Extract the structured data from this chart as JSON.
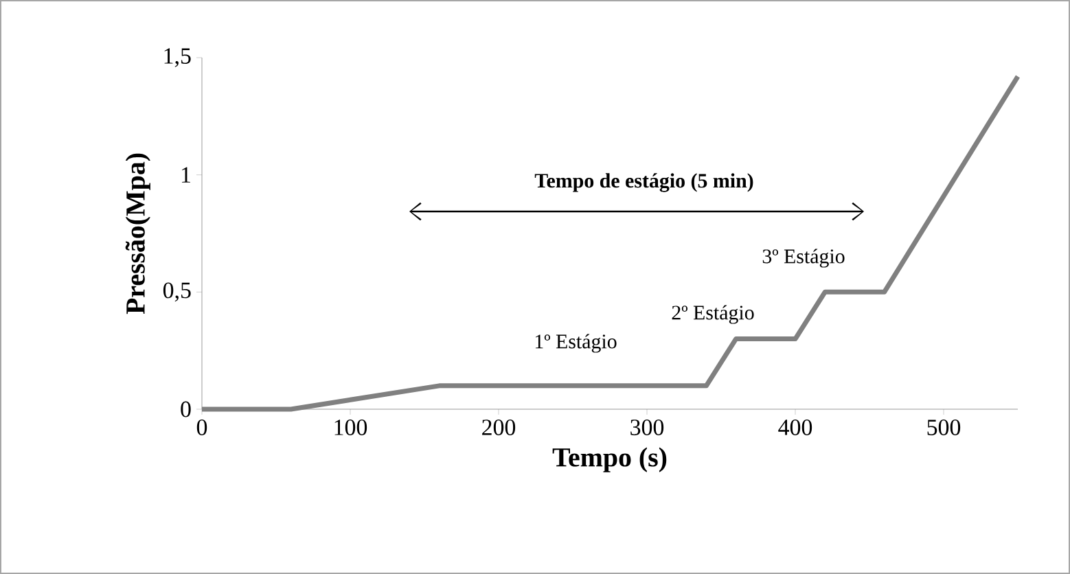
{
  "chart_data": {
    "type": "line",
    "xlabel": "Tempo (s)",
    "ylabel": "Pressão(Mpa)",
    "x": [
      0,
      60,
      160,
      340,
      360,
      400,
      420,
      460,
      550
    ],
    "values": [
      0,
      0,
      0.1,
      0.1,
      0.3,
      0.3,
      0.5,
      0.5,
      1.42
    ],
    "color": "#808080",
    "marker": "none",
    "line_style": "solid",
    "grid": false,
    "xlim": [
      0,
      550
    ],
    "xticks": [
      0,
      100,
      200,
      300,
      400,
      500
    ],
    "ylim": [
      0,
      1.5
    ],
    "yticks": [
      0,
      {
        "value": 0.5,
        "label": "0,5"
      },
      1,
      {
        "value": 1.5,
        "label": "1,5"
      }
    ],
    "annotations": [
      "Tempo de estágio (5 min)",
      "1º Estágio",
      "2º Estágio",
      "3º Estágio"
    ]
  }
}
